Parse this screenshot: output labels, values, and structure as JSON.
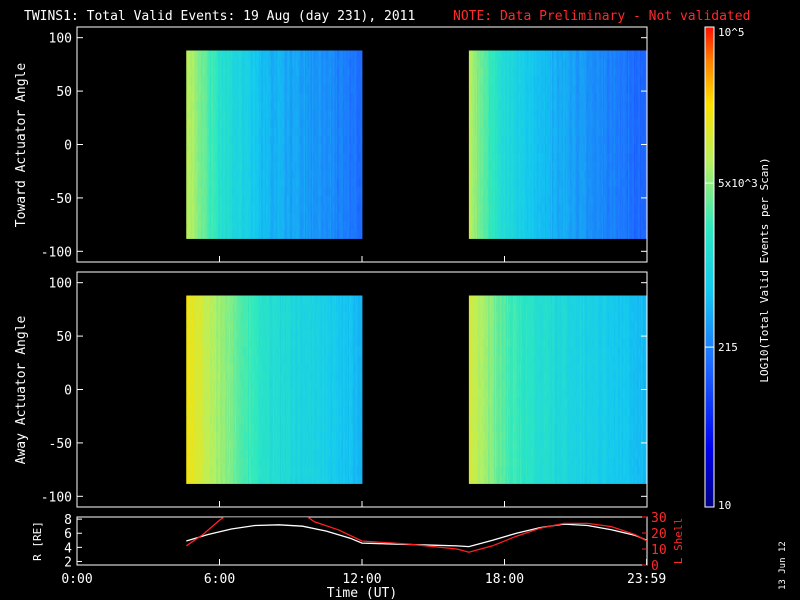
{
  "header": {
    "title": "TWINS1: Total Valid Events: 19 Aug (day 231), 2011",
    "note": "NOTE: Data Preliminary - Not validated",
    "note_color": "#ff2020"
  },
  "panels": {
    "top": {
      "ylabel": "Toward Actuator Angle"
    },
    "middle": {
      "ylabel": "Away Actuator Angle"
    },
    "bottom": {
      "ylabel": "R [RE]",
      "ylabel2": "L Shell"
    }
  },
  "xaxis": {
    "label": "Time (UT)"
  },
  "colorbar": {
    "label": "LOG10(Total Valid Events per Scan)",
    "ticks": [
      "10^5",
      "5x10^3",
      "215",
      "10"
    ]
  },
  "footer": {
    "date": "13 Jun 12"
  },
  "chart_data": [
    {
      "type": "heatmap",
      "id": "toward",
      "ylabel": "Toward Actuator Angle",
      "xlabel": "",
      "xlim": [
        0,
        24
      ],
      "ylim": [
        -110,
        110
      ],
      "yticks": [
        -100,
        -50,
        0,
        50,
        100
      ],
      "data_segments_hours": [
        [
          4.6,
          12.0
        ],
        [
          16.5,
          24.0
        ]
      ],
      "angle_range": [
        -88,
        88
      ],
      "log_scale": true,
      "color_range": [
        10,
        100000
      ],
      "profile_hours": [
        4.6,
        5.2,
        6.0,
        7.0,
        8.0,
        9.0,
        10.0,
        11.0,
        12.0,
        16.5,
        17.0,
        18.0,
        19.0,
        20.0,
        21.0,
        22.0,
        23.0,
        24.0
      ],
      "profile_counts": [
        9000,
        4000,
        1600,
        900,
        500,
        380,
        300,
        230,
        160,
        9000,
        3500,
        1200,
        700,
        450,
        330,
        250,
        190,
        140
      ]
    },
    {
      "type": "heatmap",
      "id": "away",
      "ylabel": "Away Actuator Angle",
      "xlabel": "",
      "xlim": [
        0,
        24
      ],
      "ylim": [
        -110,
        110
      ],
      "yticks": [
        -100,
        -50,
        0,
        50,
        100
      ],
      "data_segments_hours": [
        [
          4.6,
          12.0
        ],
        [
          16.5,
          24.0
        ]
      ],
      "angle_range": [
        -88,
        88
      ],
      "log_scale": true,
      "color_range": [
        10,
        100000
      ],
      "profile_hours": [
        4.6,
        5.2,
        6.0,
        7.0,
        8.0,
        9.0,
        10.0,
        11.0,
        12.0,
        16.5,
        17.0,
        18.0,
        19.0,
        20.0,
        21.0,
        22.0,
        23.0,
        24.0
      ],
      "profile_counts": [
        20000,
        12000,
        6000,
        3000,
        1500,
        1100,
        900,
        700,
        450,
        15000,
        7000,
        3000,
        1700,
        1200,
        950,
        800,
        650,
        500
      ]
    },
    {
      "type": "line",
      "id": "orbit",
      "xlabel": "Time (UT)",
      "xlim": [
        0,
        24
      ],
      "xticks": [
        0,
        6,
        12,
        18,
        23.983
      ],
      "xtick_labels": [
        "0:00",
        "6:00",
        "12:00",
        "18:00",
        "23:59"
      ],
      "ylabel": "R [RE]",
      "ylim": [
        1.5,
        8.3
      ],
      "yticks": [
        2,
        4,
        6,
        8
      ],
      "ylabel2": "L Shell",
      "ylim2": [
        0,
        30
      ],
      "yticks2": [
        0,
        10,
        20,
        30
      ],
      "series": [
        {
          "name": "R [RE]",
          "color": "#ffffff",
          "axis": "left",
          "x": [
            4.6,
            5.5,
            6.5,
            7.5,
            8.5,
            9.5,
            10.5,
            11.5,
            12.0,
            13.0,
            14.0,
            15.0,
            16.0,
            16.5,
            17.5,
            18.5,
            19.5,
            20.5,
            21.5,
            22.5,
            23.5,
            24.0
          ],
          "y": [
            4.9,
            5.8,
            6.6,
            7.1,
            7.2,
            7.0,
            6.3,
            5.3,
            4.6,
            4.5,
            4.4,
            4.3,
            4.2,
            4.1,
            5.0,
            6.0,
            6.8,
            7.3,
            7.1,
            6.5,
            5.7,
            5.0
          ]
        },
        {
          "name": "L Shell",
          "color": "#ff2020",
          "axis": "right",
          "x": [
            4.6,
            5.3,
            6.0,
            6.2,
            9.7,
            10.0,
            11.0,
            12.0,
            14.0,
            16.0,
            16.5,
            17.5,
            18.5,
            19.5,
            20.5,
            21.5,
            22.5,
            23.5,
            24.0
          ],
          "y": [
            12,
            19,
            28,
            30,
            30,
            27,
            22,
            15,
            13,
            10,
            8,
            12,
            18,
            23,
            26,
            26,
            24,
            19,
            15
          ]
        }
      ]
    }
  ]
}
